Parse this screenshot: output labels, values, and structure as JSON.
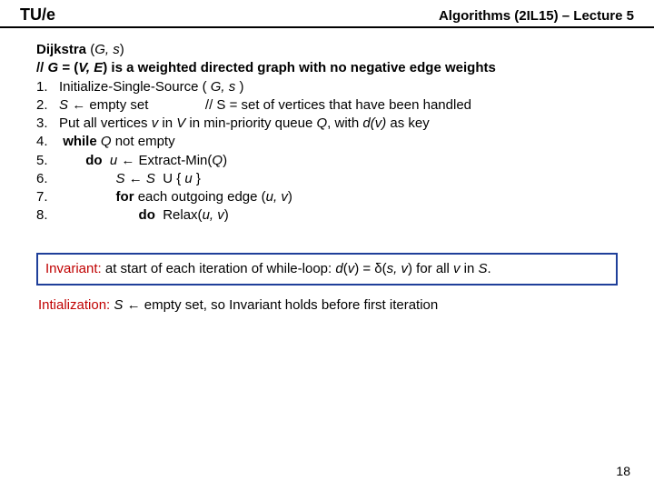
{
  "header": {
    "logo_pre": "TU",
    "logo_slash": "/",
    "logo_post": "e",
    "course": "Algorithms (2IL15) – Lecture 5"
  },
  "algo": {
    "title_name": "Dijkstra",
    "title_args_open": " (",
    "title_args": "G, s",
    "title_args_close": ")",
    "comment_pre": "// ",
    "comment_g": "G",
    "comment_mid1": " = (",
    "comment_ve": "V, E",
    "comment_mid2": ") is a weighted directed graph with no negative edge weights",
    "l1_num": "1.   ",
    "l1_a": "Initialize-Single-Source ( ",
    "l1_b": "G, s",
    "l1_c": " )",
    "l2_num": "2.   ",
    "l2_a": "S",
    "l2_b": " ← empty set               // S = set of vertices that have been handled",
    "l3_num": "3.   ",
    "l3_a": "Put all vertices ",
    "l3_v": "v",
    "l3_b": " in ",
    "l3_V": "V",
    "l3_c": " in min-priority queue ",
    "l3_Q": "Q",
    "l3_d": ", with ",
    "l3_dv": "d(v)",
    "l3_e": " as key",
    "l4_num": "4.    ",
    "l4_while": "while",
    "l4_sp": " ",
    "l4_Q": "Q",
    "l4_rest": " not empty",
    "l5_num": "5.          ",
    "l5_do": "do",
    "l5_sp": "  ",
    "l5_u": "u",
    "l5_mid": " ← Extract-Min(",
    "l5_Q": "Q",
    "l5_end": ")",
    "l6_num": "6.                  ",
    "l6_S": "S",
    "l6_mid": " ← ",
    "l6_S2": "S",
    "l6_mid2": "  U { ",
    "l6_u": "u",
    "l6_end": " }",
    "l7_num": "7.                  ",
    "l7_for": "for",
    "l7_mid": " each outgoing edge (",
    "l7_uv": "u, v",
    "l7_end": ")",
    "l8_num": "8.                        ",
    "l8_do": "do",
    "l8_sp": "  ",
    "l8_relax": "Relax(",
    "l8_uv": "u, v",
    "l8_end": ")"
  },
  "invariant": {
    "label": "Invariant:",
    "text_a": "   at start of each iteration of while-loop: ",
    "dv": "d",
    "dv_open": "(",
    "dv_v": "v",
    "dv_close": ")",
    "eq": " = δ(",
    "sv": "s, v",
    "close": ")",
    "tail_a": "  for all ",
    "tail_v": "v",
    "tail_b": " in ",
    "tail_S": "S",
    "tail_dot": "."
  },
  "init": {
    "label": "Intialization:",
    "sp": " ",
    "S": "S",
    "rest": " ← empty set, so Invariant holds before first iteration"
  },
  "page": "18",
  "colors": {
    "red": "#c00000",
    "box_border": "#1f3f9a",
    "text": "#000000",
    "bg": "#ffffff"
  }
}
